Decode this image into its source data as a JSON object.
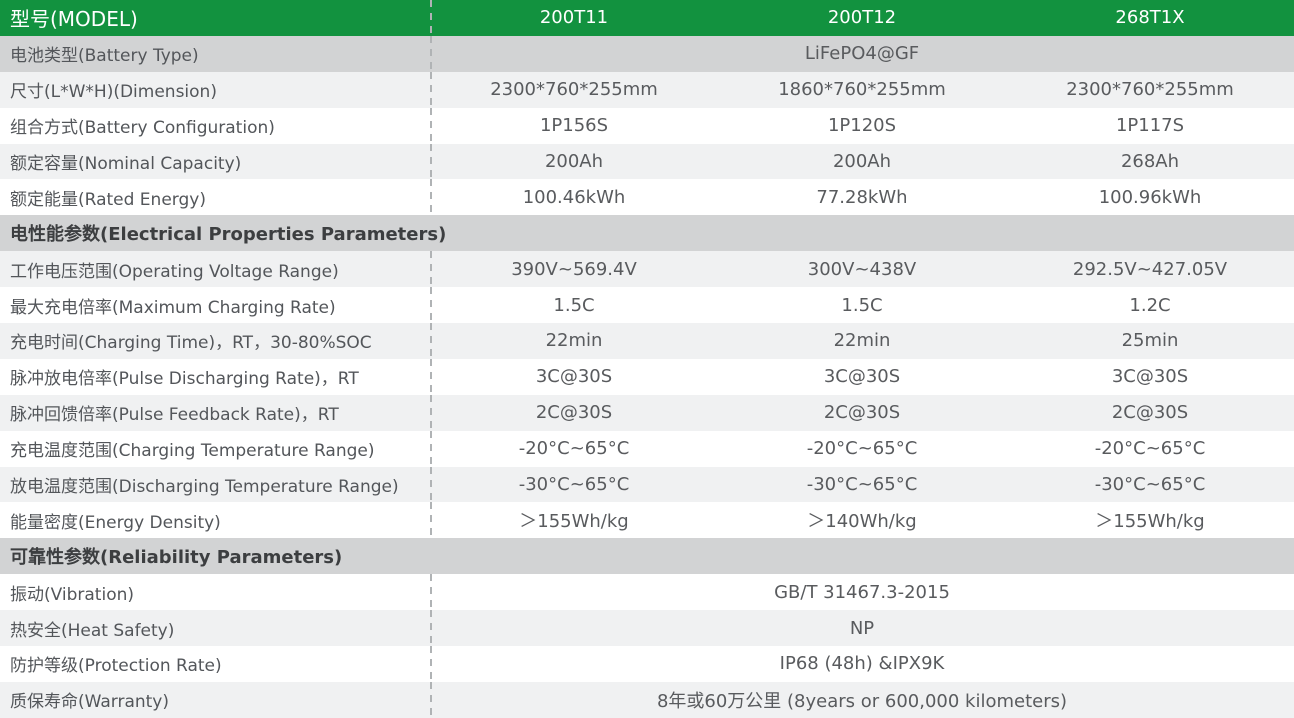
{
  "table": {
    "accent_green": "#12923f",
    "row_shades": {
      "dark": "#d2d3d4",
      "light": "#f0f1f2",
      "white": "#ffffff"
    },
    "header": {
      "label": "型号(MODEL)",
      "models": [
        "200T11",
        "200T12",
        "268T1X"
      ]
    },
    "rows": [
      {
        "type": "merged",
        "shade": "dark",
        "label": "电池类型(Battery Type)",
        "value": "LiFePO4@GF"
      },
      {
        "type": "data",
        "shade": "light",
        "label": "尺寸(L*W*H)(Dimension)",
        "values": [
          "2300*760*255mm",
          "1860*760*255mm",
          "2300*760*255mm"
        ]
      },
      {
        "type": "data",
        "shade": "white",
        "label": "组合方式(Battery Configuration)",
        "values": [
          "1P156S",
          "1P120S",
          "1P117S"
        ]
      },
      {
        "type": "data",
        "shade": "light",
        "label": "额定容量(Nominal Capacity)",
        "values": [
          "200Ah",
          "200Ah",
          "268Ah"
        ]
      },
      {
        "type": "data",
        "shade": "white",
        "label": "额定能量(Rated Energy)",
        "values": [
          "100.46kWh",
          "77.28kWh",
          "100.96kWh"
        ]
      },
      {
        "type": "section",
        "shade": "dark",
        "label": "电性能参数(Electrical Properties Parameters)"
      },
      {
        "type": "data",
        "shade": "light",
        "label": "工作电压范围(Operating Voltage Range)",
        "values": [
          "390V~569.4V",
          "300V~438V",
          "292.5V~427.05V"
        ]
      },
      {
        "type": "data",
        "shade": "white",
        "label": "最大充电倍率(Maximum Charging Rate)",
        "values": [
          "1.5C",
          "1.5C",
          "1.2C"
        ]
      },
      {
        "type": "data",
        "shade": "light",
        "label": "充电时间(Charging Time)，RT，30-80%SOC",
        "values": [
          "22min",
          "22min",
          "25min"
        ]
      },
      {
        "type": "data",
        "shade": "white",
        "label": "脉冲放电倍率(Pulse Discharging Rate)，RT",
        "values": [
          "3C@30S",
          "3C@30S",
          "3C@30S"
        ]
      },
      {
        "type": "data",
        "shade": "light",
        "label": "脉冲回馈倍率(Pulse Feedback Rate)，RT",
        "values": [
          "2C@30S",
          "2C@30S",
          "2C@30S"
        ]
      },
      {
        "type": "data",
        "shade": "white",
        "label": "充电温度范围(Charging Temperature Range)",
        "values": [
          "-20°C~65°C",
          "-20°C~65°C",
          "-20°C~65°C"
        ]
      },
      {
        "type": "data",
        "shade": "light",
        "label": "放电温度范围(Discharging Temperature Range)",
        "values": [
          "-30°C~65°C",
          "-30°C~65°C",
          "-30°C~65°C"
        ]
      },
      {
        "type": "data",
        "shade": "white",
        "label": "能量密度(Energy Density)",
        "values": [
          "＞155Wh/kg",
          "＞140Wh/kg",
          "＞155Wh/kg"
        ]
      },
      {
        "type": "section",
        "shade": "dark",
        "label": "可靠性参数(Reliability Parameters)"
      },
      {
        "type": "merged",
        "shade": "white",
        "label": "振动(Vibration)",
        "value": "GB/T 31467.3-2015"
      },
      {
        "type": "merged",
        "shade": "light",
        "label": "热安全(Heat Safety)",
        "value": "NP"
      },
      {
        "type": "merged",
        "shade": "white",
        "label": "防护等级(Protection Rate)",
        "value": "IP68 (48h) &IPX9K"
      },
      {
        "type": "merged",
        "shade": "light",
        "label": "质保寿命(Warranty)",
        "value": "8年或60万公里 (8years or 600,000 kilometers)"
      }
    ]
  }
}
